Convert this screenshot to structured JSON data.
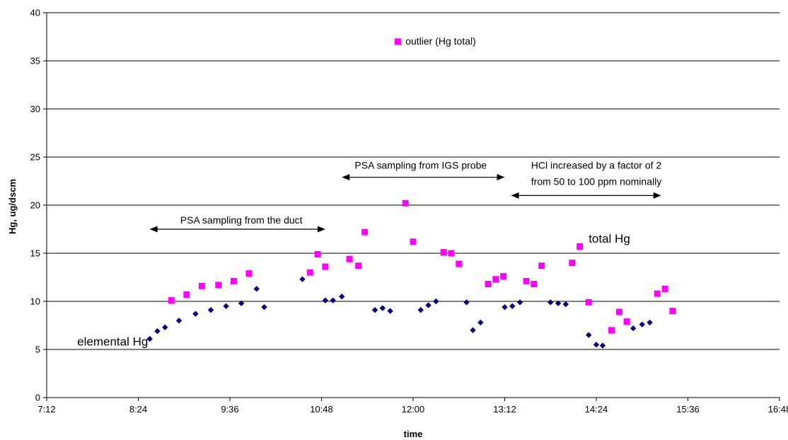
{
  "chart_data": {
    "type": "scatter",
    "xlabel": "time",
    "ylabel": "Hg, ug/dscm",
    "xlim": [
      "7:12",
      "16:48"
    ],
    "ylim": [
      0,
      40
    ],
    "x_ticks": [
      "7:12",
      "8:24",
      "9:36",
      "10:48",
      "12:00",
      "13:12",
      "14:24",
      "15:36",
      "16:48"
    ],
    "y_ticks": [
      0,
      5,
      10,
      15,
      20,
      25,
      30,
      35,
      40
    ],
    "grid": "horizontal",
    "colors": {
      "elemental": "#000080",
      "total": "#FF00FF"
    },
    "series": [
      {
        "marker": "diamond",
        "points": [
          [
            "8:33",
            6.1
          ],
          [
            "8:39",
            6.9
          ],
          [
            "8:45",
            7.3
          ],
          [
            "8:56",
            8.0
          ],
          [
            "9:09",
            8.7
          ],
          [
            "9:21",
            9.1
          ],
          [
            "9:33",
            9.5
          ],
          [
            "9:45",
            9.8
          ],
          [
            "9:57",
            11.3
          ],
          [
            "10:03",
            9.4
          ],
          [
            "10:33",
            12.3
          ],
          [
            "10:51",
            10.1
          ],
          [
            "10:57",
            10.1
          ],
          [
            "11:04",
            10.5
          ],
          [
            "11:30",
            9.1
          ],
          [
            "11:36",
            9.3
          ],
          [
            "11:42",
            9.0
          ],
          [
            "12:06",
            9.1
          ],
          [
            "12:12",
            9.6
          ],
          [
            "12:18",
            10.0
          ],
          [
            "12:42",
            9.9
          ],
          [
            "12:47",
            7.0
          ],
          [
            "12:53",
            7.8
          ],
          [
            "13:12",
            9.4
          ],
          [
            "13:18",
            9.5
          ],
          [
            "13:24",
            9.9
          ],
          [
            "13:48",
            9.9
          ],
          [
            "13:54",
            9.8
          ],
          [
            "14:00",
            9.7
          ],
          [
            "14:18",
            6.5
          ],
          [
            "14:24",
            5.5
          ],
          [
            "14:29",
            5.4
          ],
          [
            "14:53",
            7.2
          ],
          [
            "15:00",
            7.6
          ],
          [
            "15:06",
            7.8
          ]
        ]
      },
      {
        "marker": "square",
        "points": [
          [
            "8:50",
            10.1
          ],
          [
            "9:02",
            10.7
          ],
          [
            "9:14",
            11.6
          ],
          [
            "9:27",
            11.7
          ],
          [
            "9:39",
            12.1
          ],
          [
            "9:51",
            12.9
          ],
          [
            "10:39",
            13.0
          ],
          [
            "10:45",
            14.9
          ],
          [
            "10:51",
            13.6
          ],
          [
            "11:10",
            14.4
          ],
          [
            "11:17",
            13.7
          ],
          [
            "11:22",
            17.2
          ],
          [
            "11:48",
            37.0
          ],
          [
            "11:54",
            20.2
          ],
          [
            "12:00",
            16.2
          ],
          [
            "12:24",
            15.1
          ],
          [
            "12:30",
            15.0
          ],
          [
            "12:36",
            13.9
          ],
          [
            "12:59",
            11.8
          ],
          [
            "13:05",
            12.3
          ],
          [
            "13:11",
            12.6
          ],
          [
            "13:29",
            12.1
          ],
          [
            "13:35",
            11.8
          ],
          [
            "13:41",
            13.7
          ],
          [
            "14:05",
            14.0
          ],
          [
            "14:11",
            15.7
          ],
          [
            "14:18",
            9.9
          ],
          [
            "14:36",
            7.0
          ],
          [
            "14:42",
            8.9
          ],
          [
            "14:48",
            7.9
          ],
          [
            "15:12",
            10.8
          ],
          [
            "15:18",
            11.3
          ],
          [
            "15:24",
            9.0
          ]
        ]
      }
    ],
    "annotations": [
      {
        "text": "outlier (Hg total)",
        "x": "11:54",
        "y": 36.7,
        "anchor": "start"
      },
      {
        "text": "total Hg",
        "x": "14:18",
        "y": 16.1,
        "anchor": "start",
        "size": "large"
      },
      {
        "text": "elemental Hg",
        "x": "7:36",
        "y": 5.4,
        "anchor": "start",
        "size": "large"
      },
      {
        "text": "PSA sampling from the duct",
        "x": "9:45",
        "y": 18.1,
        "anchor": "middle"
      },
      {
        "text": "PSA sampling from IGS probe",
        "x": "12:06",
        "y": 23.8,
        "anchor": "middle"
      },
      {
        "text": "HCl increased by a factor of 2",
        "x": "14:24",
        "y": 23.8,
        "anchor": "middle"
      },
      {
        "text": "from 50 to 100 ppm nominally",
        "x": "14:24",
        "y": 22.1,
        "anchor": "middle"
      }
    ],
    "arrows": [
      {
        "from": "8:33",
        "to": "10:51",
        "y": 17.5
      },
      {
        "from": "11:04",
        "to": "13:12",
        "y": 22.9
      },
      {
        "from": "13:17",
        "to": "15:15",
        "y": 21.0
      }
    ]
  }
}
